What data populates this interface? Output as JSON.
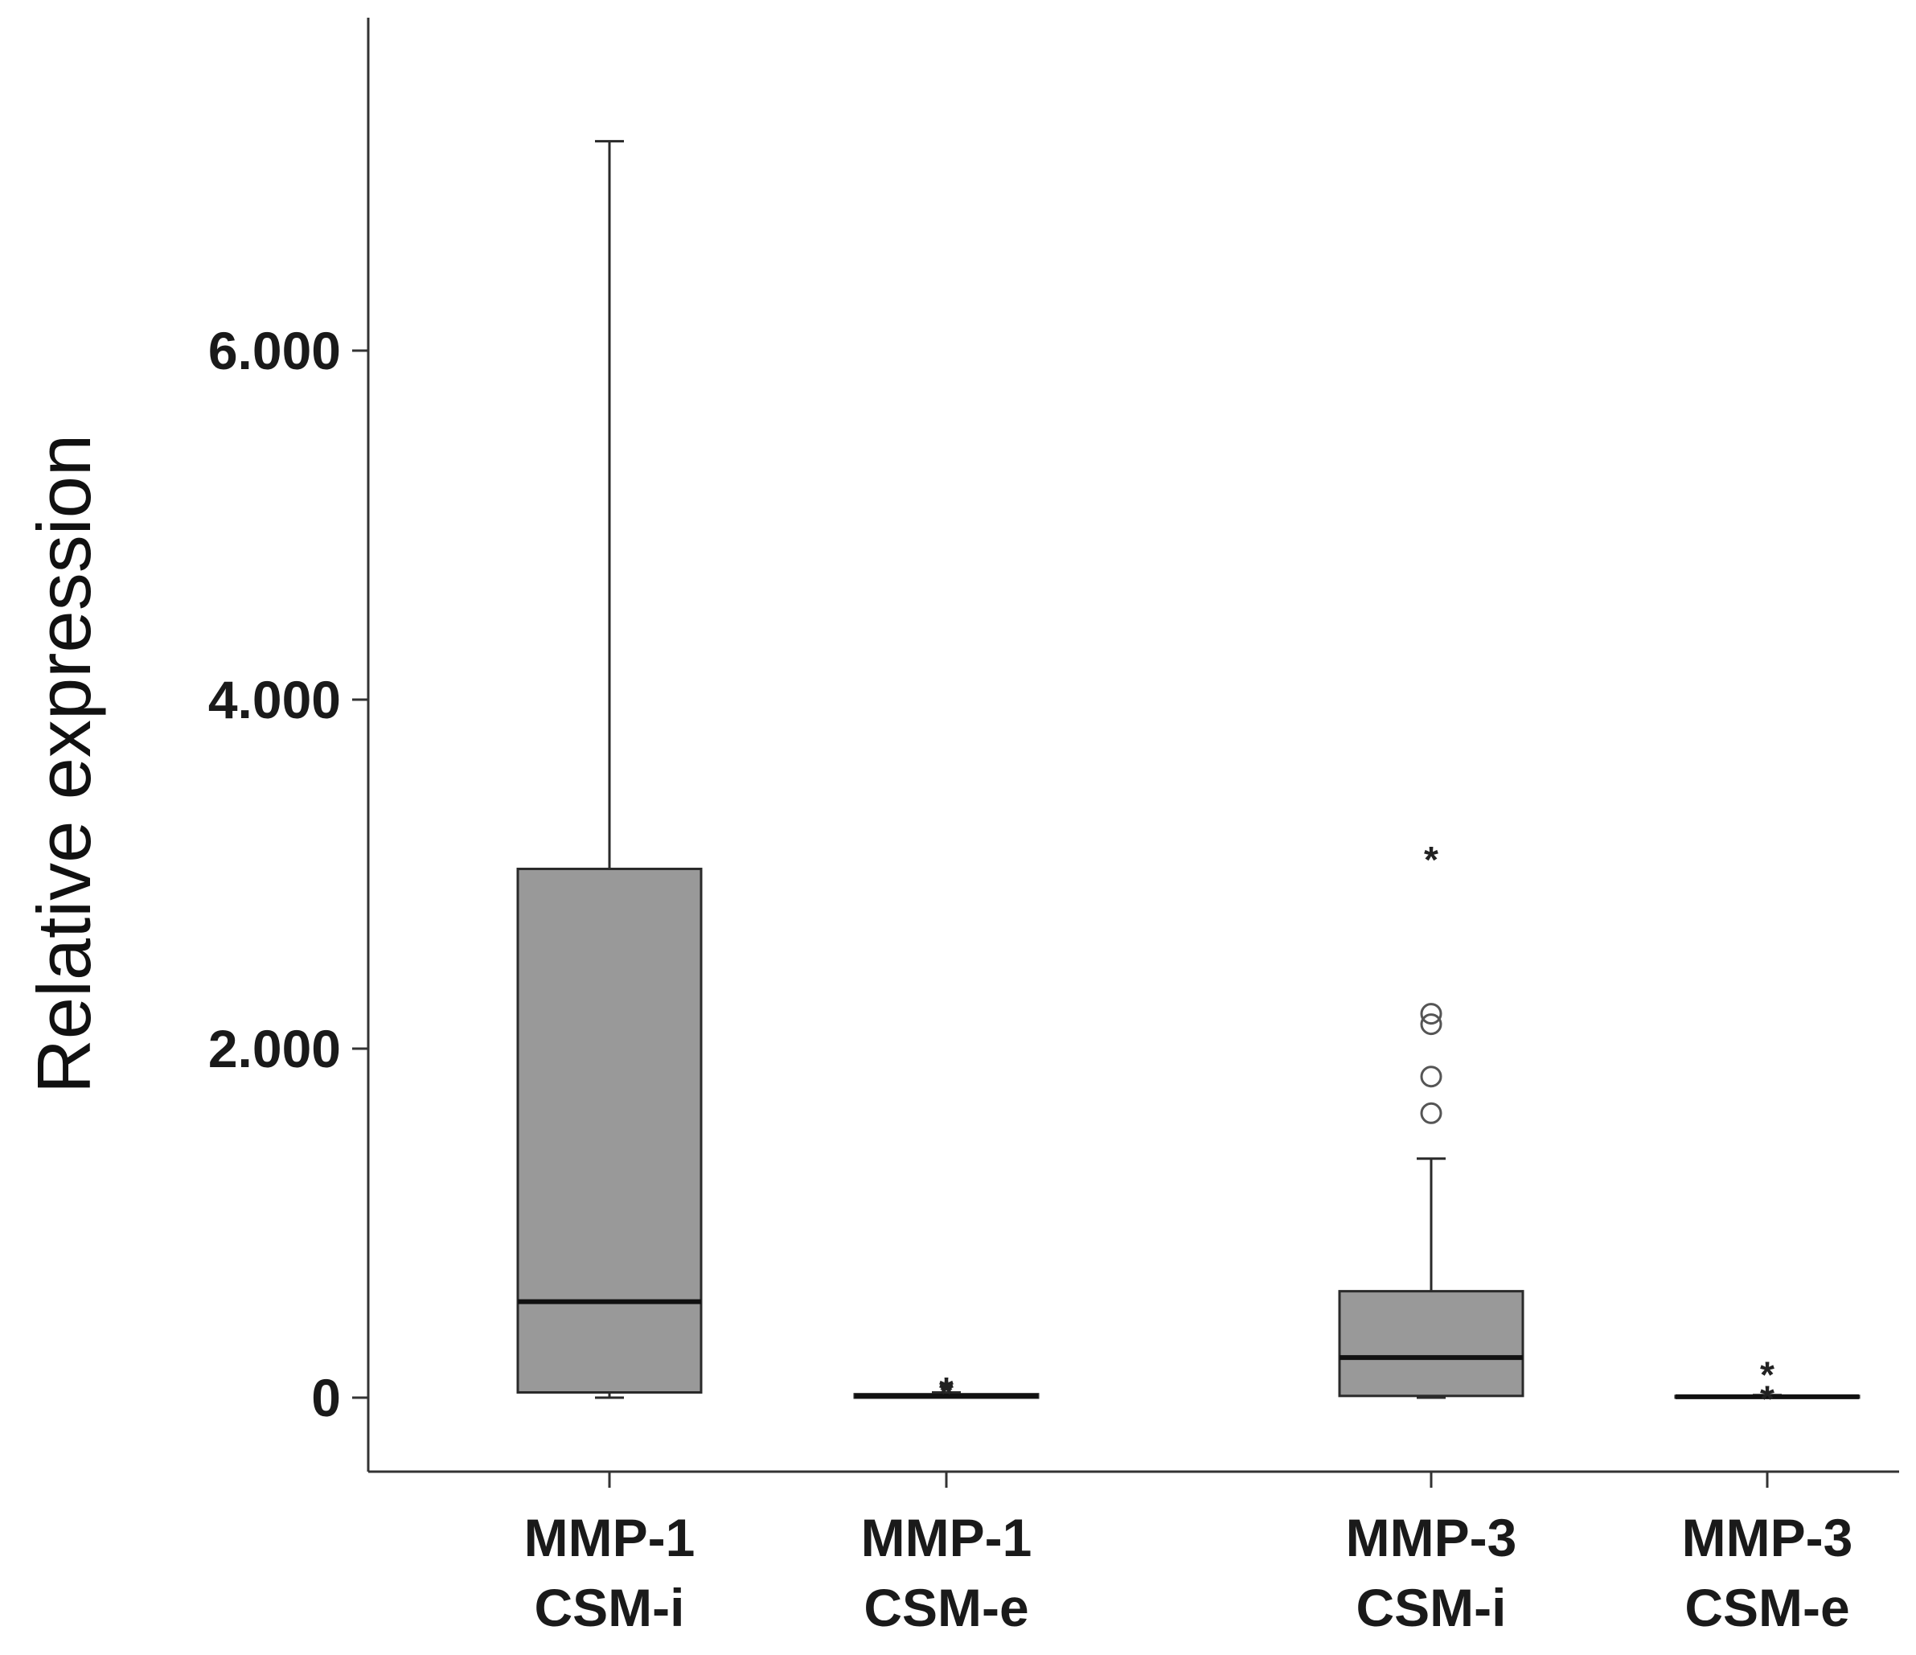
{
  "chart_data": {
    "type": "box",
    "ylabel": "Relative expression",
    "y_ticks": [
      {
        "value": 0,
        "label": "0"
      },
      {
        "value": 2000,
        "label": "2.000"
      },
      {
        "value": 4000,
        "label": "4.000"
      },
      {
        "value": 6000,
        "label": "6.000"
      }
    ],
    "ylim": [
      -420,
      8000
    ],
    "grid": false,
    "box_color": "#999999",
    "categories": [
      {
        "label_line1": "MMP-1",
        "label_line2": "CSM-i",
        "min": 0,
        "q1": 30,
        "median": 550,
        "q3": 3030,
        "max": 7200,
        "outliers_circle": [],
        "outliers_star": []
      },
      {
        "label_line1": "MMP-1",
        "label_line2": "CSM-e",
        "min": 0,
        "q1": 0,
        "median": 10,
        "q3": 20,
        "max": 30,
        "outliers_circle": [],
        "outliers_star": [
          50,
          70
        ]
      },
      {
        "label_line1": "MMP-3",
        "label_line2": "CSM-i",
        "min": 0,
        "q1": 10,
        "median": 230,
        "q3": 610,
        "max": 1370,
        "outliers_circle": [
          1630,
          1840,
          2140,
          2200
        ],
        "outliers_star": [
          3110
        ]
      },
      {
        "label_line1": "MMP-3",
        "label_line2": "CSM-e",
        "min": 0,
        "q1": 0,
        "median": 5,
        "q3": 10,
        "max": 15,
        "outliers_circle": [],
        "outliers_star": [
          20,
          160
        ]
      }
    ]
  }
}
